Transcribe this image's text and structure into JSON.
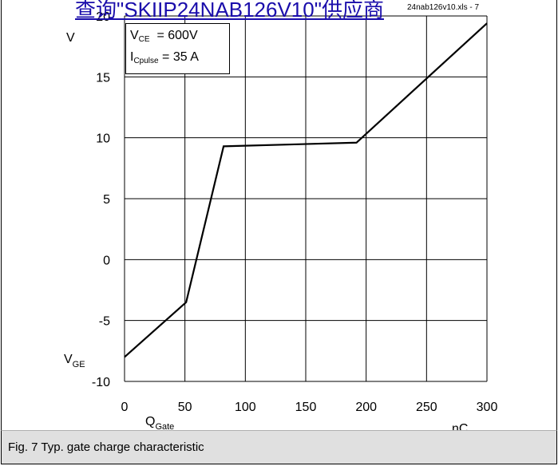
{
  "link_overlay": "查询\"SKIIP24NAB126V10\"供应商",
  "file_ref": "24nab126v10.xls - 7",
  "params": {
    "vce_symbol": "V",
    "vce_sub": "CE",
    "vce_value": "= 600V",
    "ic_symbol": "I",
    "ic_sub": "Cpulse",
    "ic_value": "= 35 A"
  },
  "caption": "Fig. 7 Typ. gate charge characteristic",
  "chart_data": {
    "type": "line",
    "x_ticks": [
      0,
      50,
      100,
      150,
      200,
      250,
      300
    ],
    "y_ticks": [
      -10,
      -5,
      0,
      5,
      10,
      15,
      20
    ],
    "xlim": [
      0,
      300
    ],
    "ylim": [
      -10,
      20
    ],
    "grid": true,
    "x_axis_label": {
      "main": "Q",
      "sub": "Gate"
    },
    "x_unit": "nC",
    "y_axis_label": {
      "main": "V",
      "sub": "GE"
    },
    "y_unit": "V",
    "series": [
      {
        "points": [
          [
            0,
            -8
          ],
          [
            51,
            -3.5
          ],
          [
            82,
            9.3
          ],
          [
            192,
            9.6
          ],
          [
            300,
            19.4
          ]
        ]
      }
    ]
  }
}
